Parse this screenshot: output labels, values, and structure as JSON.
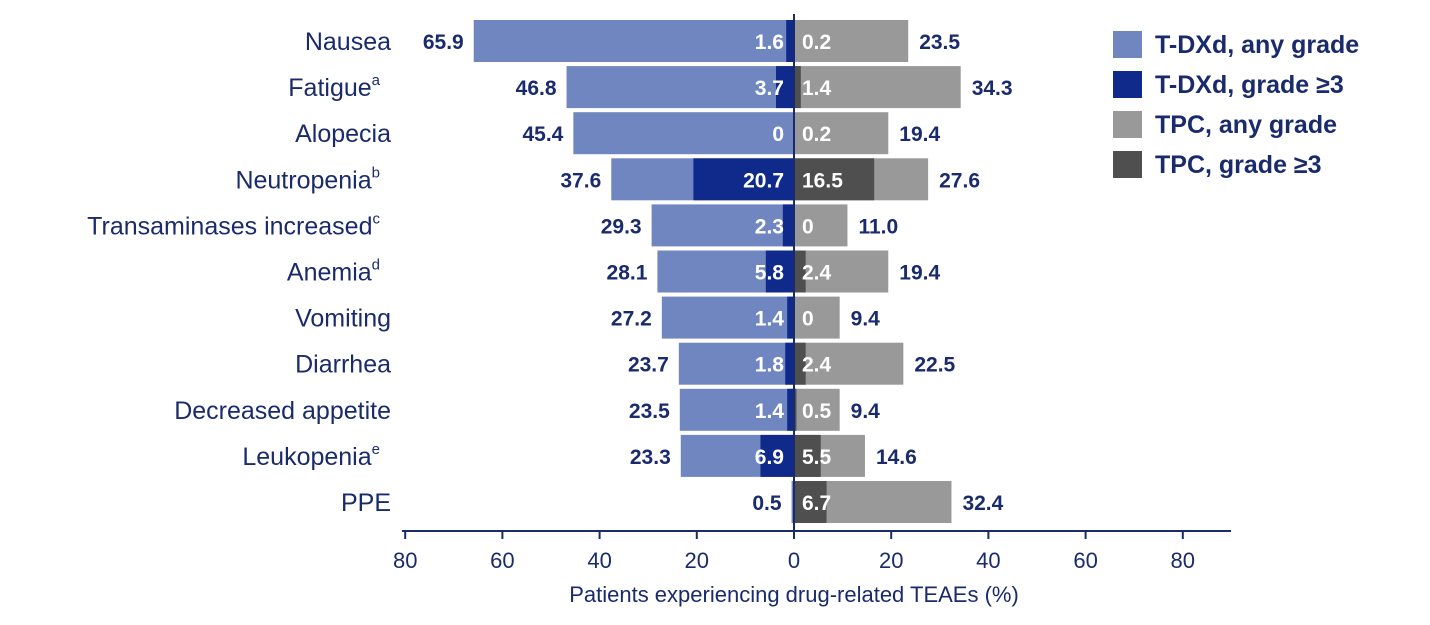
{
  "chart_data": {
    "type": "bar",
    "orientation": "horizontal-butterfly",
    "categories": [
      {
        "label": "Nausea",
        "sup": ""
      },
      {
        "label": "Fatigue",
        "sup": "a"
      },
      {
        "label": "Alopecia",
        "sup": ""
      },
      {
        "label": "Neutropenia",
        "sup": "b"
      },
      {
        "label": "Transaminases increased",
        "sup": "c"
      },
      {
        "label": "Anemia",
        "sup": "d"
      },
      {
        "label": "Vomiting",
        "sup": ""
      },
      {
        "label": "Diarrhea",
        "sup": ""
      },
      {
        "label": "Decreased appetite",
        "sup": ""
      },
      {
        "label": "Leukopenia",
        "sup": "e"
      },
      {
        "label": "PPE",
        "sup": ""
      }
    ],
    "series": [
      {
        "name": "T-DXd, any grade",
        "side": "left",
        "color": "#7086c0",
        "values": [
          65.9,
          46.8,
          45.4,
          37.6,
          29.3,
          28.1,
          27.2,
          23.7,
          23.5,
          23.3,
          0.5
        ],
        "labels": [
          "65.9",
          "46.8",
          "45.4",
          "37.6",
          "29.3",
          "28.1",
          "27.2",
          "23.7",
          "23.5",
          "23.3",
          "0.5"
        ]
      },
      {
        "name": "T-DXd, grade ≥3",
        "side": "left",
        "color": "#0f2a8a",
        "values": [
          1.6,
          3.7,
          0,
          20.7,
          2.3,
          5.8,
          1.4,
          1.8,
          1.4,
          6.9,
          null
        ],
        "labels": [
          "1.6",
          "3.7",
          "0",
          "20.7",
          "2.3",
          "5.8",
          "1.4",
          "1.8",
          "1.4",
          "6.9",
          ""
        ]
      },
      {
        "name": "TPC, any grade",
        "side": "right",
        "color": "#999999",
        "values": [
          23.5,
          34.3,
          19.4,
          27.6,
          11.0,
          19.4,
          9.4,
          22.5,
          9.4,
          14.6,
          32.4
        ],
        "labels": [
          "23.5",
          "34.3",
          "19.4",
          "27.6",
          "11.0",
          "19.4",
          "9.4",
          "22.5",
          "9.4",
          "14.6",
          "32.4"
        ]
      },
      {
        "name": "TPC, grade ≥3",
        "side": "right",
        "color": "#4f4f4f",
        "values": [
          0.2,
          1.4,
          0.2,
          16.5,
          0,
          2.4,
          0,
          2.4,
          0.5,
          5.5,
          6.7
        ],
        "labels": [
          "0.2",
          "1.4",
          "0.2",
          "16.5",
          "0",
          "2.4",
          "0",
          "2.4",
          "0.5",
          "5.5",
          "6.7"
        ]
      }
    ],
    "xticks": [
      "80",
      "60",
      "40",
      "20",
      "0",
      "20",
      "40",
      "60",
      "80"
    ],
    "xlim": [
      -80,
      80
    ],
    "xlabel": "Patients experiencing drug-related TEAEs (%)",
    "legend_position": "top-right",
    "grid": false
  }
}
